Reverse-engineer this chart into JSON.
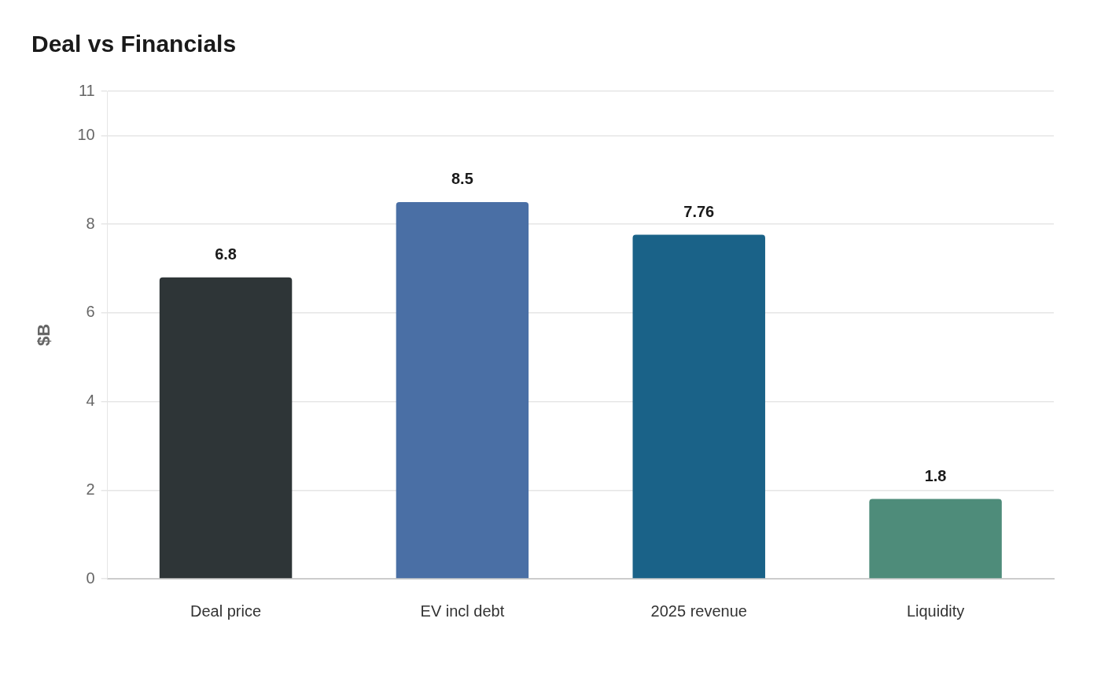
{
  "chart_data": {
    "type": "bar",
    "title": "Deal vs Financials",
    "ylabel": "$B",
    "categories": [
      "Deal price",
      "EV incl debt",
      "2025 revenue",
      "Liquidity"
    ],
    "values": [
      6.8,
      8.5,
      7.76,
      1.8
    ],
    "colors": [
      "#2e3537",
      "#4a6fa5",
      "#1a6288",
      "#4e8c7a"
    ],
    "ylim": [
      0,
      11
    ],
    "yticks": [
      0,
      2,
      4,
      6,
      8,
      10,
      11
    ],
    "grid": "y",
    "legend": false,
    "data_labels": true
  }
}
